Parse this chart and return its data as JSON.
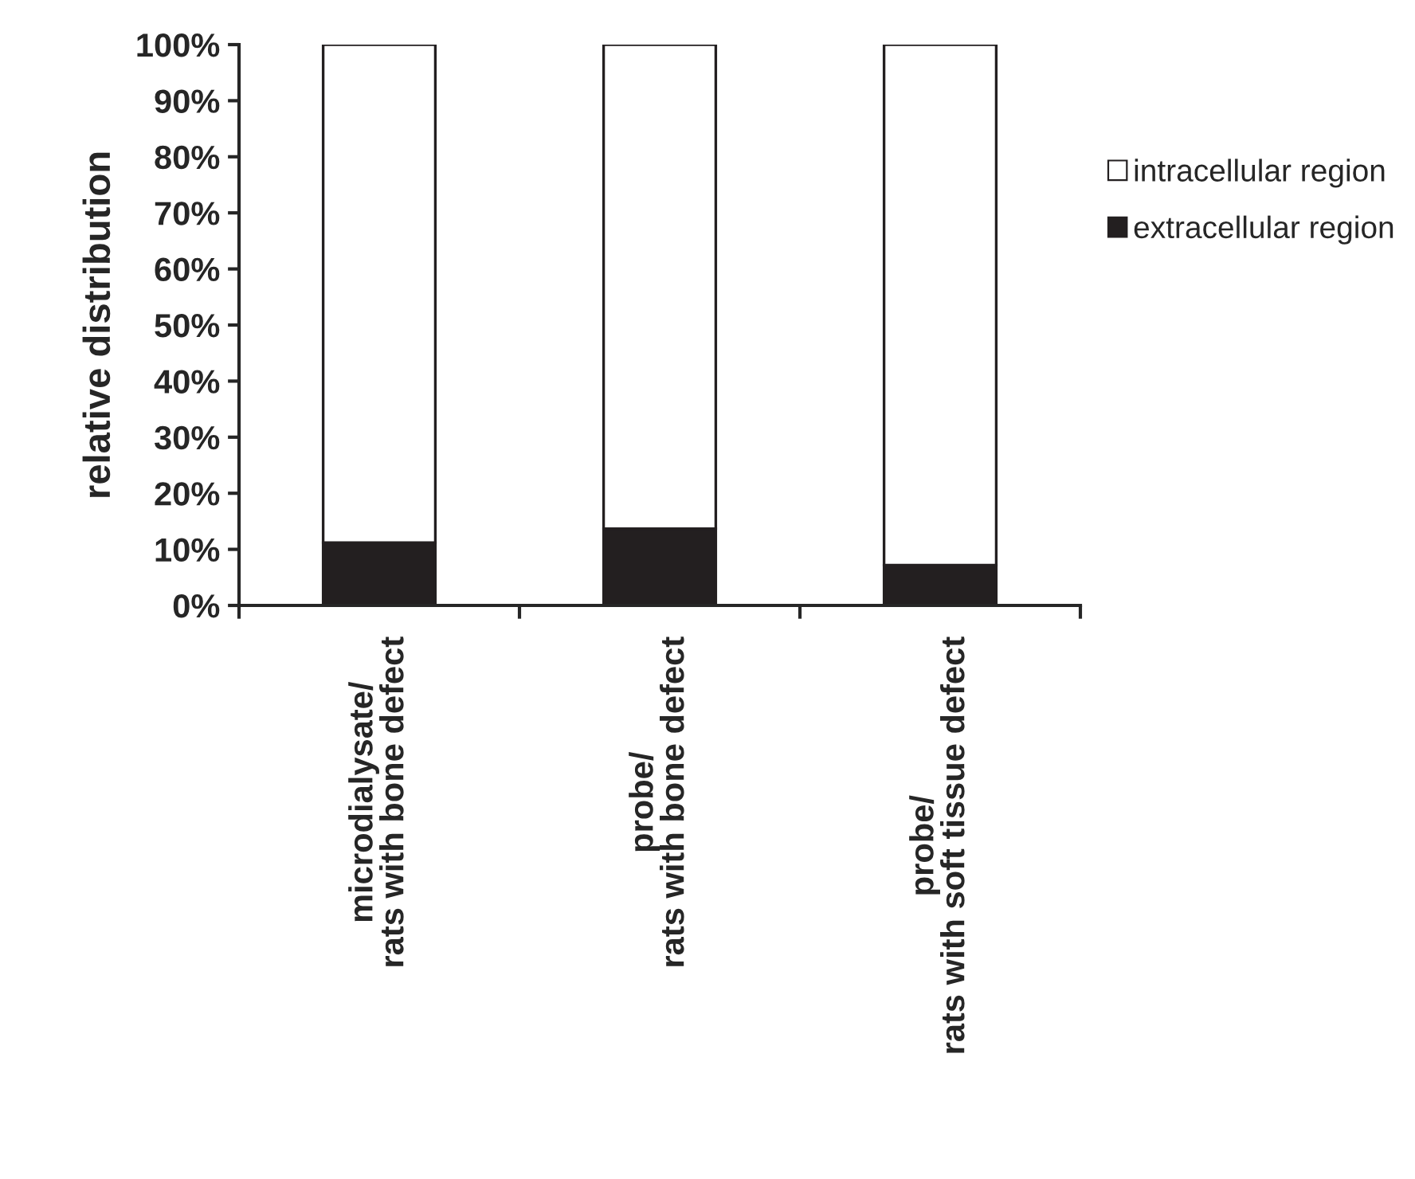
{
  "chart_data": {
    "type": "bar",
    "stacked": true,
    "ylabel": "relative distribution",
    "categories": [
      "microdialysate/\nrats with bone defect",
      "probe/\nrats with bone defect",
      "probe/\nrats with soft tissue defect"
    ],
    "series": [
      {
        "name": "extracellular region",
        "color": "#231f20",
        "values": [
          11.2,
          13.7,
          7.2
        ]
      },
      {
        "name": "intracellular region",
        "color": "#ffffff",
        "values": [
          88.8,
          86.3,
          92.8
        ]
      }
    ],
    "ylim": [
      0,
      100
    ],
    "yticks": [
      {
        "value": 0,
        "label": "0%"
      },
      {
        "value": 10,
        "label": "10%"
      },
      {
        "value": 20,
        "label": "20%"
      },
      {
        "value": 30,
        "label": "30%"
      },
      {
        "value": 40,
        "label": "40%"
      },
      {
        "value": 50,
        "label": "50%"
      },
      {
        "value": 60,
        "label": "60%"
      },
      {
        "value": 70,
        "label": "70%"
      },
      {
        "value": 80,
        "label": "80%"
      },
      {
        "value": 90,
        "label": "90%"
      },
      {
        "value": 100,
        "label": "100%"
      }
    ],
    "grid": false,
    "legend": "right"
  }
}
